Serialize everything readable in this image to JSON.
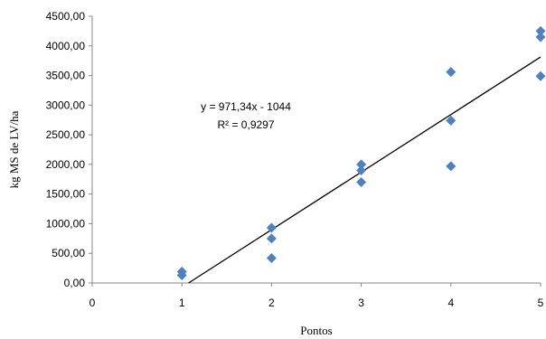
{
  "chart_data": {
    "type": "scatter",
    "xlabel": "Pontos",
    "ylabel": "kg MS de LV/ha",
    "xlim": [
      0,
      5
    ],
    "ylim": [
      0,
      4500
    ],
    "x_ticks": [
      "0",
      "1",
      "2",
      "3",
      "4",
      "5"
    ],
    "y_ticks": [
      "0,00",
      "500,00",
      "1000,00",
      "1500,00",
      "2000,00",
      "2500,00",
      "3000,00",
      "3500,00",
      "4000,00",
      "4500,00"
    ],
    "grid": false,
    "marker_color": "#4F81BD",
    "series": [
      {
        "points": [
          {
            "x": 1,
            "y": 190
          },
          {
            "x": 1,
            "y": 130
          },
          {
            "x": 2,
            "y": 930
          },
          {
            "x": 2,
            "y": 750
          },
          {
            "x": 2,
            "y": 420
          },
          {
            "x": 3,
            "y": 2000
          },
          {
            "x": 3,
            "y": 1900
          },
          {
            "x": 3,
            "y": 1700
          },
          {
            "x": 4,
            "y": 3560
          },
          {
            "x": 4,
            "y": 2740
          },
          {
            "x": 4,
            "y": 1970
          },
          {
            "x": 5,
            "y": 4250
          },
          {
            "x": 5,
            "y": 4150
          },
          {
            "x": 5,
            "y": 3490
          }
        ]
      }
    ],
    "trendline": {
      "slope": 971.34,
      "intercept": -1044,
      "color": "#000000",
      "equation_label": "y = 971,34x - 1044",
      "r2_label": "R² = 0,9297"
    }
  }
}
